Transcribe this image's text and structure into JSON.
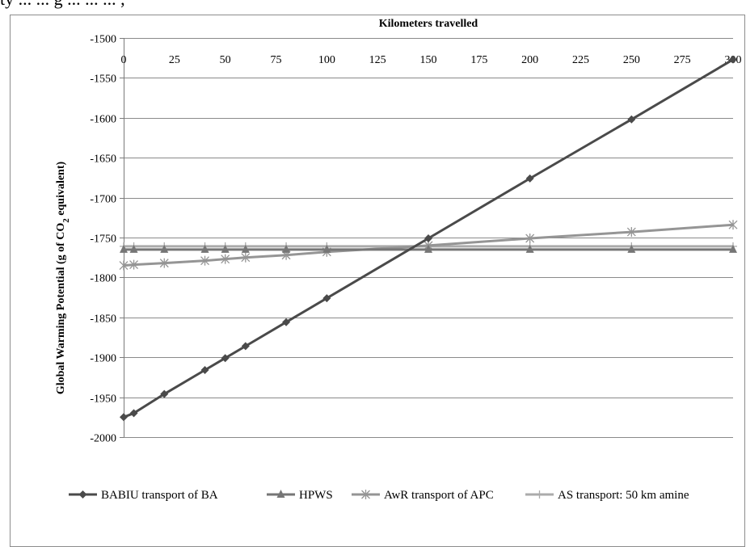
{
  "caption": "ty ... ... g ... ... ... ,",
  "chart_data": {
    "type": "line",
    "title": "",
    "xlabel": "Kilometers travelled",
    "ylabel_parts": [
      "Global Warming Potential (g of CO",
      "2",
      " equivalent)"
    ],
    "xlim": [
      0,
      300
    ],
    "ylim": [
      -2000,
      -1500
    ],
    "x_ticks": [
      0,
      25,
      50,
      75,
      100,
      125,
      150,
      175,
      200,
      225,
      250,
      275,
      300
    ],
    "y_ticks": [
      -1500,
      -1550,
      -1600,
      -1650,
      -1700,
      -1750,
      -1800,
      -1850,
      -1900,
      -1950,
      -2000
    ],
    "x_axis_position": "top",
    "grid": "horizontal",
    "legend_position": "bottom",
    "series": [
      {
        "name": "BABIU transport of BA",
        "marker": "diamond",
        "color": "#4a4a4a",
        "x": [
          0,
          5,
          20,
          40,
          50,
          60,
          80,
          100,
          150,
          200,
          250,
          300
        ],
        "y": [
          -1975,
          -1970,
          -1946,
          -1916,
          -1901,
          -1886,
          -1856,
          -1826,
          -1751,
          -1676,
          -1602,
          -1527
        ]
      },
      {
        "name": "HPWS",
        "marker": "triangle",
        "color": "#767676",
        "x": [
          0,
          5,
          20,
          40,
          50,
          60,
          80,
          100,
          150,
          200,
          250,
          300
        ],
        "y": [
          -1765,
          -1765,
          -1765,
          -1765,
          -1765,
          -1765,
          -1765,
          -1765,
          -1765,
          -1765,
          -1765,
          -1765
        ]
      },
      {
        "name": "AwR transport of APC",
        "marker": "star",
        "color": "#959595",
        "x": [
          0,
          5,
          20,
          40,
          50,
          60,
          80,
          100,
          150,
          200,
          250,
          300
        ],
        "y": [
          -1785,
          -1784,
          -1782,
          -1779,
          -1777,
          -1775,
          -1772,
          -1768,
          -1760,
          -1751,
          -1743,
          -1734
        ]
      },
      {
        "name": "AS transport: 50 km amine",
        "marker": "plus",
        "color": "#ababab",
        "x": [
          0,
          5,
          20,
          40,
          50,
          60,
          80,
          100,
          150,
          200,
          250,
          300
        ],
        "y": [
          -1761,
          -1761,
          -1761,
          -1761,
          -1761,
          -1761,
          -1761,
          -1761,
          -1761,
          -1761,
          -1761,
          -1761
        ]
      }
    ]
  }
}
